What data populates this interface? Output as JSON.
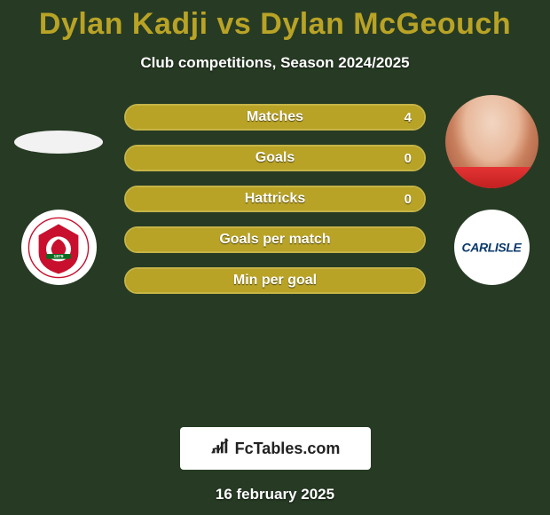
{
  "background_color": "#273b24",
  "title": {
    "full": "Dylan Kadji vs Dylan McGeouch",
    "player1": "Dylan Kadji",
    "player2": "Dylan McGeouch",
    "color": "#b9a326"
  },
  "subtitle": "Club competitions, Season 2024/2025",
  "players": {
    "left": {
      "name": "Dylan Kadji",
      "has_photo": false,
      "club_name": "Swindon Town",
      "club_colors": {
        "primary": "#c8102e",
        "secondary": "#ffffff",
        "accent": "#0b6b1f"
      }
    },
    "right": {
      "name": "Dylan McGeouch",
      "has_photo": true,
      "club_name": "Carlisle",
      "club_colors": {
        "primary": "#0a3a6b",
        "bg": "#ffffff"
      }
    }
  },
  "stats": [
    {
      "label": "Matches",
      "left_pct": 0,
      "right_pct": 100,
      "right_value": "4",
      "show_right_value": true
    },
    {
      "label": "Goals",
      "left_pct": 0,
      "right_pct": 100,
      "right_value": "0",
      "show_right_value": true
    },
    {
      "label": "Hattricks",
      "left_pct": 0,
      "right_pct": 100,
      "right_value": "0",
      "show_right_value": true
    },
    {
      "label": "Goals per match",
      "left_pct": 50,
      "right_pct": 50,
      "right_value": "",
      "show_right_value": false
    },
    {
      "label": "Min per goal",
      "left_pct": 50,
      "right_pct": 50,
      "right_value": "",
      "show_right_value": false
    }
  ],
  "bar_style": {
    "bg_color": "#8c7a1e",
    "fill_color": "#b9a326",
    "border_color": "#c6b446",
    "text_color": "#ffffff"
  },
  "brand": "FcTables.com",
  "date": "16 february 2025"
}
